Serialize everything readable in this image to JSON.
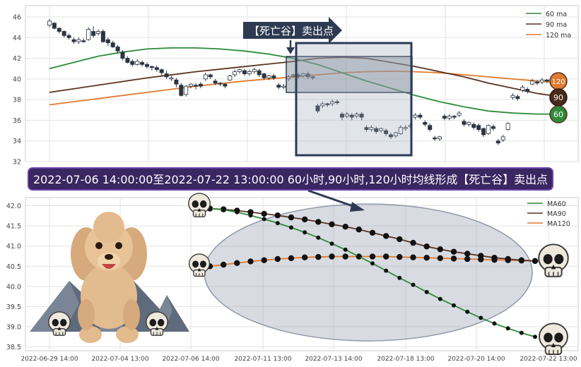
{
  "banner": {
    "top_label": "【死亡谷】卖出点",
    "caption": "2022-07-06 14:00:00至2022-07-22 13:00:00 60小时,90小时,120小时均线形成【死亡谷】卖出点"
  },
  "colors": {
    "ma60": "#2e8b3a",
    "ma90": "#5a3320",
    "ma120": "#e07a2e",
    "up": "#ffffff",
    "down": "#2b3440",
    "box": "#2b3a55",
    "caption_bg": "#3a2660",
    "caption_border": "#6a40a8"
  },
  "chart_data": [
    {
      "type": "candlestick",
      "ylim": [
        32,
        47
      ],
      "yticks": [
        "46",
        "44",
        "42",
        "40",
        "38",
        "36",
        "34",
        "32"
      ],
      "legend": {
        "position": "top-right",
        "entries": [
          "60 ma",
          "90 ma",
          "120 ma"
        ]
      },
      "end_labels": [
        "120",
        "90",
        "60"
      ],
      "ma60": [
        [
          0,
          41.0
        ],
        [
          5,
          41.6
        ],
        [
          10,
          42.2
        ],
        [
          15,
          42.6
        ],
        [
          20,
          42.9
        ],
        [
          25,
          43.0
        ],
        [
          30,
          43.0
        ],
        [
          35,
          42.9
        ],
        [
          40,
          42.7
        ],
        [
          45,
          42.4
        ],
        [
          50,
          42.0
        ],
        [
          55,
          41.4
        ],
        [
          60,
          40.6
        ],
        [
          65,
          39.8
        ],
        [
          70,
          39.1
        ],
        [
          75,
          38.4
        ],
        [
          80,
          37.8
        ],
        [
          85,
          37.3
        ],
        [
          90,
          36.9
        ],
        [
          95,
          36.7
        ],
        [
          100,
          36.6
        ],
        [
          103,
          36.6
        ]
      ],
      "ma90": [
        [
          0,
          38.7
        ],
        [
          10,
          39.4
        ],
        [
          20,
          40.1
        ],
        [
          30,
          40.7
        ],
        [
          40,
          41.2
        ],
        [
          50,
          41.7
        ],
        [
          55,
          42.0
        ],
        [
          60,
          42.1
        ],
        [
          65,
          42.0
        ],
        [
          70,
          41.6
        ],
        [
          75,
          41.2
        ],
        [
          80,
          40.7
        ],
        [
          85,
          40.2
        ],
        [
          90,
          39.6
        ],
        [
          95,
          39.1
        ],
        [
          100,
          38.6
        ],
        [
          103,
          38.4
        ]
      ],
      "ma120": [
        [
          0,
          37.5
        ],
        [
          10,
          38.1
        ],
        [
          20,
          38.7
        ],
        [
          30,
          39.3
        ],
        [
          40,
          39.8
        ],
        [
          50,
          40.2
        ],
        [
          55,
          40.4
        ],
        [
          60,
          40.6
        ],
        [
          65,
          40.7
        ],
        [
          70,
          40.75
        ],
        [
          75,
          40.7
        ],
        [
          80,
          40.6
        ],
        [
          85,
          40.4
        ],
        [
          90,
          40.2
        ],
        [
          95,
          40.0
        ],
        [
          100,
          39.8
        ],
        [
          103,
          39.7
        ]
      ],
      "candles": [
        [
          0,
          45.2,
          45.6,
          45.0,
          45.8
        ],
        [
          1,
          45.4,
          44.9,
          44.8,
          45.5
        ],
        [
          2,
          44.9,
          44.6,
          44.4,
          45.0
        ],
        [
          3,
          44.6,
          44.2,
          44.0,
          44.7
        ],
        [
          4,
          44.2,
          44.0,
          43.8,
          44.4
        ],
        [
          5,
          43.8,
          43.6,
          43.4,
          44.0
        ],
        [
          6,
          43.6,
          43.8,
          43.4,
          44.0
        ],
        [
          7,
          43.7,
          43.6,
          43.5,
          43.9
        ],
        [
          8,
          43.8,
          44.8,
          43.7,
          45.0
        ],
        [
          9,
          44.6,
          44.2,
          44.0,
          45.1
        ],
        [
          10,
          44.4,
          44.6,
          44.2,
          44.8
        ],
        [
          11,
          44.6,
          43.6,
          43.5,
          44.8
        ],
        [
          12,
          43.8,
          43.5,
          43.2,
          44.0
        ],
        [
          13,
          43.5,
          43.1,
          43.0,
          43.7
        ],
        [
          14,
          43.1,
          42.7,
          42.5,
          43.3
        ],
        [
          15,
          42.6,
          42.0,
          41.8,
          42.8
        ],
        [
          16,
          42.0,
          41.6,
          41.5,
          42.2
        ],
        [
          17,
          41.7,
          41.4,
          41.2,
          41.9
        ],
        [
          18,
          41.4,
          41.7,
          41.3,
          41.9
        ],
        [
          19,
          41.6,
          41.4,
          41.2,
          41.8
        ],
        [
          20,
          41.4,
          41.2,
          41.0,
          41.6
        ],
        [
          21,
          41.2,
          41.1,
          40.8,
          41.3
        ],
        [
          22,
          41.1,
          40.9,
          40.7,
          41.3
        ],
        [
          23,
          40.9,
          40.6,
          40.3,
          41.0
        ],
        [
          24,
          40.5,
          40.2,
          40.0,
          40.8
        ],
        [
          25,
          40.0,
          40.1,
          39.8,
          40.3
        ],
        [
          26,
          39.9,
          39.5,
          39.2,
          40.1
        ],
        [
          27,
          39.4,
          38.4,
          38.3,
          39.6
        ],
        [
          28,
          38.5,
          39.3,
          38.3,
          39.4
        ],
        [
          29,
          39.3,
          39.5,
          39.1,
          39.6
        ],
        [
          30,
          39.4,
          39.3,
          39.0,
          39.6
        ],
        [
          31,
          39.5,
          39.3,
          39.1,
          39.7
        ],
        [
          32,
          40.0,
          40.4,
          39.8,
          40.6
        ],
        [
          33,
          40.4,
          40.2,
          40.0,
          40.5
        ],
        [
          34,
          39.8,
          39.6,
          39.4,
          40.0
        ],
        [
          35,
          39.6,
          39.5,
          39.3,
          39.7
        ],
        [
          36,
          39.5,
          39.3,
          39.1,
          39.6
        ],
        [
          37,
          39.9,
          40.3,
          39.8,
          40.4
        ],
        [
          38,
          40.4,
          40.7,
          40.2,
          40.9
        ],
        [
          39,
          40.7,
          40.9,
          40.5,
          41.0
        ],
        [
          40,
          40.8,
          40.5,
          40.3,
          41.0
        ],
        [
          41,
          40.5,
          40.7,
          40.3,
          40.9
        ],
        [
          42,
          40.7,
          40.9,
          40.5,
          41.1
        ],
        [
          43,
          40.8,
          40.4,
          40.2,
          41.0
        ],
        [
          44,
          40.5,
          40.1,
          39.9,
          40.6
        ],
        [
          45,
          40.1,
          40.3,
          39.9,
          40.4
        ],
        [
          46,
          40.3,
          40.1,
          39.9,
          40.5
        ],
        [
          47,
          39.4,
          39.2,
          39.0,
          39.6
        ],
        [
          48,
          39.2,
          39.3,
          39.0,
          39.5
        ],
        [
          49,
          40.0,
          40.2,
          39.8,
          40.4
        ],
        [
          50,
          40.3,
          40.4,
          40.1,
          40.5
        ],
        [
          51,
          40.4,
          40.2,
          40.0,
          40.6
        ],
        [
          52,
          40.3,
          40.5,
          40.1,
          40.6
        ],
        [
          53,
          40.5,
          40.2,
          40.0,
          40.7
        ],
        [
          54,
          40.2,
          40.1,
          39.9,
          40.3
        ],
        [
          55,
          37.4,
          36.9,
          36.7,
          37.6
        ],
        [
          56,
          37.4,
          37.6,
          37.2,
          37.8
        ],
        [
          57,
          37.6,
          37.5,
          37.3,
          37.7
        ],
        [
          58,
          37.6,
          37.8,
          37.4,
          38.0
        ],
        [
          59,
          37.8,
          37.7,
          37.5,
          38.0
        ],
        [
          60,
          36.6,
          36.3,
          36.0,
          36.8
        ],
        [
          61,
          36.4,
          36.6,
          36.2,
          36.8
        ],
        [
          62,
          36.5,
          36.3,
          36.0,
          36.7
        ],
        [
          63,
          36.4,
          36.6,
          36.2,
          36.8
        ],
        [
          64,
          36.6,
          36.3,
          36.0,
          36.8
        ],
        [
          65,
          35.3,
          35.1,
          34.9,
          35.5
        ],
        [
          66,
          35.1,
          35.3,
          34.9,
          35.5
        ],
        [
          67,
          35.2,
          34.9,
          34.7,
          35.4
        ],
        [
          68,
          35.0,
          35.2,
          34.8,
          35.3
        ],
        [
          69,
          35.0,
          34.7,
          34.5,
          35.2
        ],
        [
          70,
          34.6,
          34.4,
          34.2,
          34.8
        ],
        [
          71,
          34.5,
          34.8,
          34.3,
          34.9
        ],
        [
          72,
          34.7,
          35.3,
          34.6,
          35.5
        ],
        [
          73,
          35.2,
          35.3,
          35.0,
          35.5
        ],
        [
          74,
          35.4,
          35.5,
          35.2,
          35.7
        ],
        [
          75,
          36.3,
          36.5,
          36.1,
          36.7
        ],
        [
          76,
          36.5,
          36.3,
          36.1,
          36.7
        ],
        [
          77,
          35.8,
          35.6,
          35.4,
          36.0
        ],
        [
          78,
          35.5,
          35.1,
          34.9,
          35.7
        ],
        [
          79,
          34.3,
          34.2,
          34.0,
          34.5
        ],
        [
          80,
          34.2,
          34.4,
          34.0,
          34.5
        ],
        [
          81,
          36.4,
          36.2,
          36.0,
          36.6
        ],
        [
          82,
          36.2,
          36.4,
          36.0,
          36.6
        ],
        [
          83,
          36.4,
          36.3,
          36.1,
          36.5
        ],
        [
          84,
          36.5,
          36.7,
          36.3,
          36.9
        ],
        [
          85,
          35.9,
          35.6,
          35.4,
          36.1
        ],
        [
          86,
          35.6,
          35.8,
          35.4,
          35.9
        ],
        [
          87,
          35.6,
          35.3,
          35.1,
          35.8
        ],
        [
          88,
          35.5,
          35.1,
          34.9,
          35.7
        ],
        [
          89,
          35.2,
          34.6,
          34.4,
          35.3
        ],
        [
          90,
          34.7,
          35.5,
          34.6,
          35.6
        ],
        [
          91,
          35.4,
          35.2,
          35.0,
          35.6
        ],
        [
          92,
          34.0,
          33.8,
          33.6,
          34.2
        ],
        [
          93,
          34.1,
          34.4,
          33.9,
          34.6
        ],
        [
          94,
          35.1,
          35.7,
          35.0,
          35.8
        ],
        [
          95,
          38.2,
          38.4,
          38.0,
          38.6
        ],
        [
          96,
          38.3,
          38.1,
          37.9,
          38.5
        ],
        [
          97,
          38.9,
          39.2,
          38.7,
          39.4
        ],
        [
          98,
          39.0,
          38.8,
          38.6,
          39.2
        ],
        [
          99,
          39.5,
          39.8,
          39.4,
          40.0
        ],
        [
          100,
          39.7,
          39.6,
          39.4,
          39.9
        ],
        [
          101,
          39.7,
          39.9,
          39.5,
          40.1
        ],
        [
          102,
          39.9,
          39.8,
          39.6,
          40.0
        ]
      ]
    },
    {
      "type": "line",
      "ylim": [
        38.4,
        42.2
      ],
      "yticks": [
        "42.0",
        "41.5",
        "41.0",
        "40.5",
        "40.0",
        "39.5",
        "39.0",
        "38.5"
      ],
      "xticks": [
        "2022-06-29 14:00",
        "2022-07-04 13:00",
        "2022-07-06 14:00",
        "2022-07-11 13:00",
        "2022-07-13 14:00",
        "2022-07-18 13:00",
        "2022-07-20 14:00",
        "2022-07-22 13:00"
      ],
      "legend": {
        "position": "top-right",
        "entries": [
          "MA60",
          "MA90",
          "MA120"
        ]
      },
      "ma60": [
        41.93,
        41.9,
        41.84,
        41.76,
        41.67,
        41.57,
        41.46,
        41.34,
        41.21,
        41.06,
        40.91,
        40.74,
        40.57,
        40.39,
        40.21,
        40.04,
        39.86,
        39.69,
        39.53,
        39.37,
        39.22,
        39.08,
        38.96,
        38.85,
        38.75
      ],
      "ma90": [
        41.93,
        41.91,
        41.88,
        41.84,
        41.8,
        41.76,
        41.71,
        41.66,
        41.6,
        41.54,
        41.48,
        41.41,
        41.33,
        41.25,
        41.17,
        41.08,
        40.99,
        40.92,
        40.86,
        40.81,
        40.76,
        40.71,
        40.68,
        40.65,
        40.63
      ],
      "ma120": [
        40.5,
        40.54,
        40.58,
        40.62,
        40.65,
        40.68,
        40.7,
        40.72,
        40.73,
        40.74,
        40.74,
        40.74,
        40.74,
        40.74,
        40.73,
        40.72,
        40.71,
        40.7,
        40.69,
        40.68,
        40.67,
        40.66,
        40.65,
        40.64,
        40.63
      ]
    }
  ]
}
